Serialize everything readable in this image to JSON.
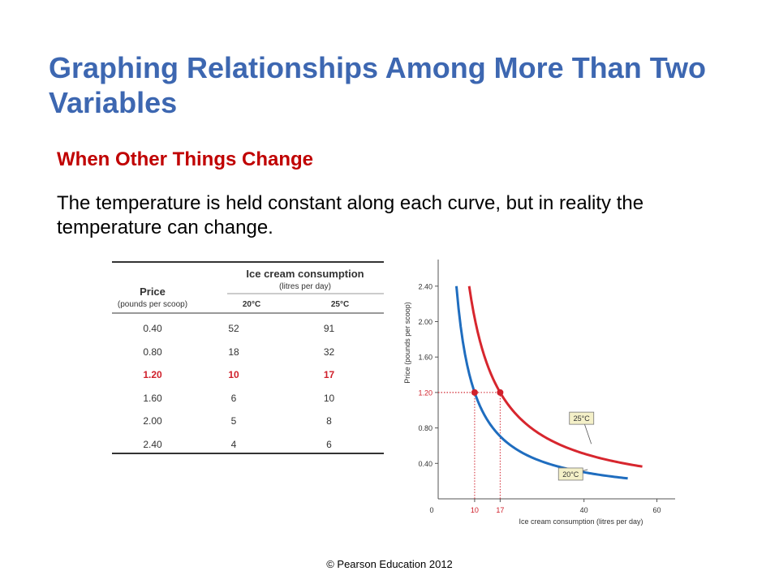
{
  "slide": {
    "title": "Graphing Relationships Among More Than Two Variables",
    "subtitle": "When Other Things Change",
    "body": "The temperature is held constant along each curve, but in reality the temperature can change.",
    "footer": "© Pearson Education 2012"
  },
  "table": {
    "price_header": "Price",
    "price_unit": "(pounds per scoop)",
    "consumption_header": "Ice cream consumption",
    "consumption_unit": "(litres per day)",
    "col_20": "20°C",
    "col_25": "25°C",
    "rows": [
      {
        "price": "0.40",
        "c20": "52",
        "c25": "91"
      },
      {
        "price": "0.80",
        "c20": "18",
        "c25": "32"
      },
      {
        "price": "1.20",
        "c20": "10",
        "c25": "17"
      },
      {
        "price": "1.60",
        "c20": "6",
        "c25": "10"
      },
      {
        "price": "2.00",
        "c20": "5",
        "c25": "8"
      },
      {
        "price": "2.40",
        "c20": "4",
        "c25": "6"
      }
    ],
    "highlight_row_index": 2
  },
  "chart_data": {
    "type": "line",
    "xlabel": "Ice cream consumption (litres per day)",
    "ylabel": "Price (pounds per scoop)",
    "xlim": [
      0,
      65
    ],
    "ylim": [
      0,
      2.7
    ],
    "x_ticks": [
      0,
      10,
      17,
      40,
      60
    ],
    "x_tick_labels": [
      "0",
      "10",
      "17",
      "40",
      "60"
    ],
    "highlight_x_ticks": [
      10,
      17
    ],
    "y_ticks": [
      0.4,
      0.8,
      1.2,
      1.6,
      2.0,
      2.4
    ],
    "y_tick_labels": [
      "0.40",
      "0.80",
      "1.20",
      "1.60",
      "2.00",
      "2.40"
    ],
    "highlight_y_ticks": [
      1.2
    ],
    "series": [
      {
        "name": "20°C",
        "color": "#1f6dbf",
        "k": 12,
        "x_range": [
          5,
          52
        ]
      },
      {
        "name": "25°C",
        "color": "#d7262e",
        "k": 20.4,
        "x_range": [
          8.5,
          56
        ]
      }
    ],
    "points": [
      {
        "x": 10,
        "y": 1.2,
        "series": "20°C"
      },
      {
        "x": 17,
        "y": 1.2,
        "series": "25°C"
      }
    ],
    "legend": "curve labels"
  }
}
